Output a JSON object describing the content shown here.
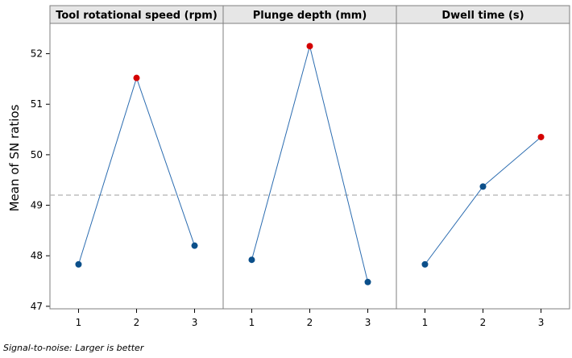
{
  "chart_data": {
    "type": "line",
    "ylabel": "Mean of SN ratios",
    "ylim": [
      46.95,
      52.6
    ],
    "yticks": [
      47,
      48,
      49,
      50,
      51,
      52
    ],
    "reference_line": 49.2,
    "footnote": "Signal-to-noise: Larger is better",
    "colors": {
      "line": "#2b6cb0",
      "point": "#0b4f8a",
      "max_point": "#d40000",
      "reference": "#b0b0b0",
      "header": "#e6e6e6",
      "frame": "#7f7f7f"
    },
    "panels": [
      {
        "title": "Tool rotational speed (rpm)",
        "x": [
          "1",
          "2",
          "3"
        ],
        "values": [
          47.83,
          51.52,
          48.2
        ]
      },
      {
        "title": "Plunge depth (mm)",
        "x": [
          "1",
          "2",
          "3"
        ],
        "values": [
          47.92,
          52.15,
          47.48
        ]
      },
      {
        "title": "Dwell time (s)",
        "x": [
          "1",
          "2",
          "3"
        ],
        "values": [
          47.83,
          49.37,
          50.35
        ]
      }
    ]
  }
}
